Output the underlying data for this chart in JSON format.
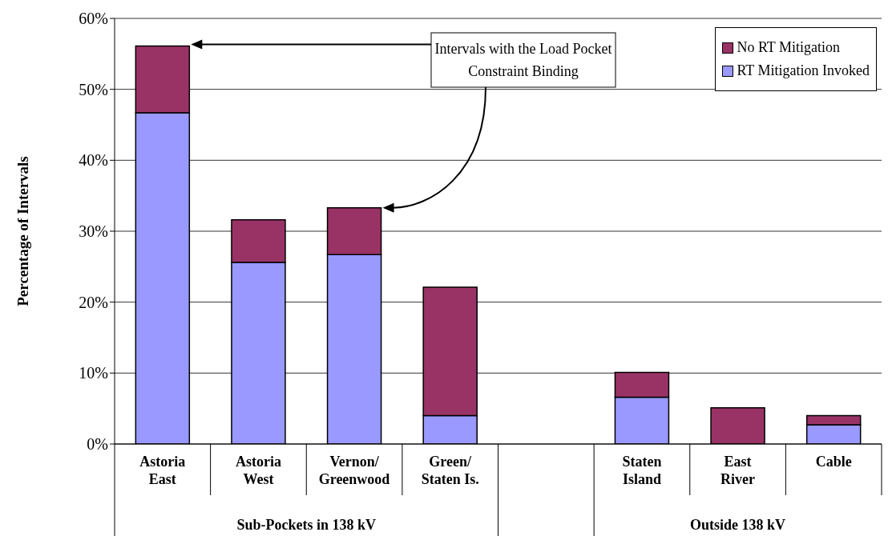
{
  "chart_data": {
    "type": "bar",
    "stacked": true,
    "categories": [
      "Astoria East",
      "Astoria West",
      "Vernon/Greenwood",
      "Green/Staten Is.",
      null,
      "Staten Island",
      "East River",
      "Cable"
    ],
    "series": [
      {
        "name": "RT Mitigation Invoked",
        "color": "#9999ff",
        "values": [
          46.7,
          25.6,
          26.7,
          4.0,
          null,
          6.6,
          0,
          2.7
        ]
      },
      {
        "name": "No RT Mitigation",
        "color": "#993366",
        "values": [
          9.4,
          6.0,
          6.6,
          18.1,
          null,
          3.5,
          5.1,
          1.3
        ]
      }
    ],
    "ylabel": "Percentage of Intervals",
    "ylim": [
      0,
      60
    ],
    "yticks": [
      {
        "value": 0,
        "label": "0%"
      },
      {
        "value": 10,
        "label": "10%"
      },
      {
        "value": 20,
        "label": "20%"
      },
      {
        "value": 30,
        "label": "30%"
      },
      {
        "value": 40,
        "label": "40%"
      },
      {
        "value": 50,
        "label": "50%"
      },
      {
        "value": 60,
        "label": "60%"
      }
    ],
    "grid": "y",
    "legend": "top right",
    "annotations": [
      "Intervals with the Load Pocket Constraint Binding",
      "Sub-Pockets in 138 kV",
      "Outside 138 kV"
    ]
  }
}
